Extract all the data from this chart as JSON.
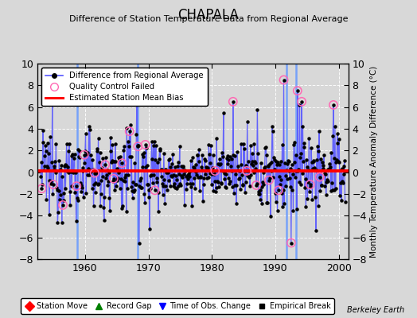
{
  "title": "CHAPALA",
  "subtitle": "Difference of Station Temperature Data from Regional Average",
  "ylabel": "Monthly Temperature Anomaly Difference (°C)",
  "credit": "Berkeley Earth",
  "ylim": [
    -8,
    10
  ],
  "yticks": [
    -8,
    -6,
    -4,
    -2,
    0,
    2,
    4,
    6,
    8,
    10
  ],
  "xlim": [
    1952.5,
    2001.5
  ],
  "xticks": [
    1960,
    1970,
    1980,
    1990,
    2000
  ],
  "background_color": "#d8d8d8",
  "plot_bg_color": "#d8d8d8",
  "bias_line_value": 0.1,
  "line_color": "#5555ff",
  "dot_color": "#000000",
  "grid_color": "#b0b0b0",
  "time_of_obs_changes": [
    1958.7,
    1968.3,
    1991.8,
    1993.3
  ],
  "seed": 12345,
  "start_year": 1953.0,
  "end_year": 2001.0,
  "noise_scale": 1.4
}
